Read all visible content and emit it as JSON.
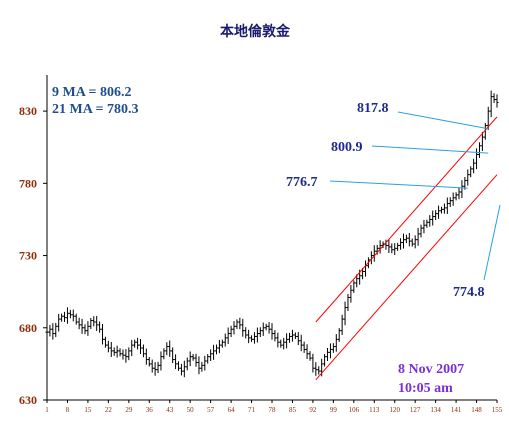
{
  "chart_data": {
    "type": "ohlc",
    "title": "本地倫敦金",
    "y_axis": {
      "ylim": [
        630,
        855
      ],
      "ticks": [
        630,
        680,
        730,
        780,
        830
      ]
    },
    "x_axis": {
      "ticks": [
        "1",
        "8",
        "15",
        "22",
        "29",
        "36",
        "43",
        "50",
        "57",
        "64",
        "71",
        "78",
        "85",
        "92",
        "99",
        "106",
        "113",
        "120",
        "127",
        "134",
        "141",
        "148",
        "155"
      ]
    },
    "moving_averages": {
      "ma9": "9 MA = 806.2",
      "ma21": "21 MA = 780.3"
    },
    "annotations": [
      {
        "label": "817.8",
        "value": 817.8,
        "x": 152
      },
      {
        "label": "800.9",
        "value": 800.9,
        "x": 152
      },
      {
        "label": "776.7",
        "value": 776.7,
        "x": 145
      },
      {
        "label": "774.8",
        "value": 774.8,
        "x": 146
      }
    ],
    "date": "8 Nov 2007",
    "time": "10:05 am",
    "channel": {
      "upper": [
        [
          93,
          684
        ],
        [
          155,
          826
        ]
      ],
      "lower": [
        [
          93,
          644
        ],
        [
          155,
          786
        ]
      ]
    },
    "closes": [
      677,
      679,
      676,
      681,
      686,
      688,
      687,
      690,
      689,
      688,
      684,
      682,
      680,
      678,
      681,
      685,
      684,
      682,
      679,
      672,
      668,
      666,
      664,
      663,
      664,
      662,
      661,
      660,
      664,
      668,
      670,
      668,
      666,
      662,
      658,
      655,
      652,
      651,
      654,
      660,
      664,
      667,
      664,
      658,
      655,
      652,
      650,
      653,
      657,
      660,
      659,
      656,
      652,
      654,
      657,
      660,
      662,
      664,
      666,
      668,
      670,
      673,
      676,
      679,
      681,
      684,
      682,
      678,
      675,
      673,
      672,
      674,
      676,
      678,
      680,
      681,
      679,
      676,
      673,
      670,
      668,
      670,
      672,
      674,
      675,
      674,
      671,
      668,
      665,
      662,
      659,
      652,
      651,
      650,
      655,
      660,
      663,
      665,
      667,
      672,
      678,
      686,
      694,
      701,
      706,
      711,
      714,
      716,
      719,
      723,
      727,
      730,
      733,
      735,
      737,
      738,
      737,
      736,
      734,
      735,
      737,
      739,
      741,
      742,
      740,
      738,
      741,
      745,
      749,
      751,
      753,
      755,
      757,
      759,
      761,
      762,
      763,
      766,
      768,
      770,
      772,
      774,
      778,
      782,
      786,
      790,
      794,
      800,
      806,
      812,
      820,
      830,
      840,
      838,
      836
    ]
  },
  "colors": {
    "bars": "#000000",
    "channel": "#ff0000",
    "annotation_line": "#2aa0e0",
    "axis": "#000000"
  }
}
